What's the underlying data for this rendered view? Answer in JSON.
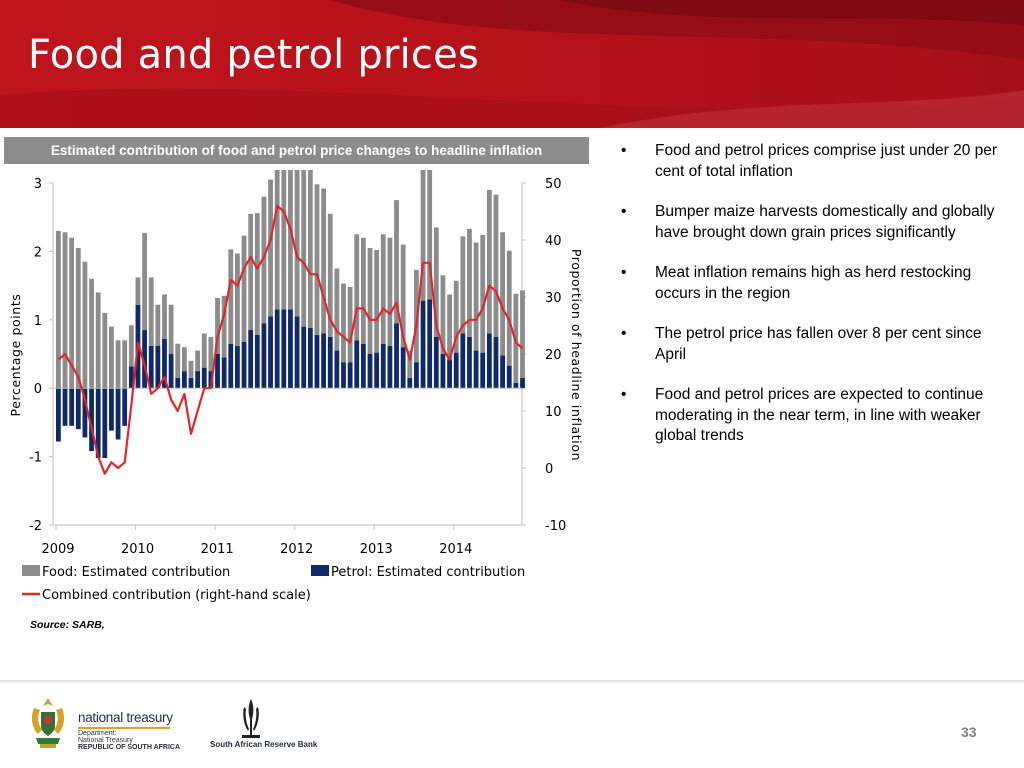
{
  "slide": {
    "title": "Food and petrol prices",
    "chart_title": "Estimated contribution of food and petrol price changes to headline inflation",
    "source_label": "Source",
    "source_text": ": SARB,",
    "page_number": "33",
    "colors": {
      "banner": "#b5121b",
      "banner_dark": "#8e0c14",
      "food": "#8c8c8c",
      "petrol": "#0f2a6b",
      "line": "#e3242b"
    }
  },
  "bullets": [
    "Food and petrol prices comprise just under 20 per cent of total inflation",
    "Bumper maize harvests domestically and globally have brought down grain prices significantly",
    "Meat inflation remains high as herd restocking occurs in the region",
    "The petrol price has fallen over 8 per cent since April",
    "Food and petrol prices are expected to continue moderating in the near term, in line with weaker global trends"
  ],
  "footer": {
    "treasury_name": "national treasury",
    "treasury_sub1": "Department:",
    "treasury_sub2": "National Treasury",
    "treasury_sub3": "REPUBLIC OF SOUTH AFRICA",
    "sarb_name": "South African Reserve Bank",
    "icons": [
      "coat-of-arms-icon",
      "sarb-emblem-icon"
    ]
  },
  "chart_data": {
    "type": "bar",
    "stacked": true,
    "ylabel": "Percentage points",
    "y2label": "Proportion of headline inflation",
    "ylim": [
      -2,
      3
    ],
    "y2lim": [
      -10,
      50
    ],
    "yticks": [
      "3",
      "2",
      "1",
      "0",
      "-1",
      "-2"
    ],
    "y2ticks": [
      "50",
      "40",
      "30",
      "20",
      "10",
      "0",
      "-10"
    ],
    "year_labels": [
      "2009",
      "2010",
      "2011",
      "2012",
      "2013",
      "2014"
    ],
    "legend": [
      "Food: Estimated contribution",
      "Petrol: Estimated contribution",
      "Combined contribution (right-hand scale)"
    ],
    "legend_placement": "bottom",
    "grid": false,
    "period": "monthly, Jan 2009 - Sep 2014",
    "series": [
      {
        "name": "Food: Estimated contribution",
        "values": [
          2.3,
          2.28,
          2.2,
          2.05,
          1.85,
          1.6,
          1.4,
          1.1,
          0.9,
          0.7,
          0.7,
          0.6,
          0.4,
          1.42,
          1.0,
          0.6,
          0.65,
          0.72,
          0.5,
          0.35,
          0.25,
          0.3,
          0.5,
          0.5,
          0.82,
          0.9,
          1.38,
          1.35,
          1.55,
          1.7,
          1.78,
          1.85,
          2.0,
          2.28,
          2.72,
          2.75,
          2.7,
          2.4,
          2.35,
          2.2,
          2.12,
          1.8,
          1.2,
          1.15,
          1.1,
          1.55,
          1.55,
          1.55,
          1.5,
          1.6,
          1.58,
          1.8,
          1.5,
          0.4,
          1.35,
          2.28,
          2.35,
          1.6,
          1.15,
          0.95,
          1.05,
          1.42,
          1.58,
          1.58,
          1.72,
          2.1,
          2.08,
          1.8,
          1.68,
          1.3,
          1.28
        ]
      },
      {
        "name": "Petrol: Estimated contribution",
        "values": [
          -0.78,
          -0.55,
          -0.55,
          -0.6,
          -0.72,
          -0.92,
          -1.02,
          -1.02,
          -0.62,
          -0.75,
          -0.55,
          0.32,
          1.22,
          0.85,
          0.62,
          0.62,
          0.72,
          0.5,
          0.15,
          0.25,
          0.15,
          0.25,
          0.3,
          0.25,
          0.5,
          0.45,
          0.65,
          0.62,
          0.68,
          0.85,
          0.78,
          0.95,
          1.05,
          1.15,
          1.15,
          1.15,
          1.05,
          0.9,
          0.88,
          0.78,
          0.8,
          0.75,
          0.55,
          0.38,
          0.38,
          0.7,
          0.65,
          0.5,
          0.52,
          0.65,
          0.62,
          0.95,
          0.6,
          0.15,
          0.38,
          1.28,
          1.3,
          0.75,
          0.5,
          0.42,
          0.52,
          0.8,
          0.75,
          0.55,
          0.52,
          0.8,
          0.75,
          0.48,
          0.33,
          0.08,
          0.15
        ]
      },
      {
        "name": "Combined contribution (right-hand scale)",
        "axis": "right",
        "values": [
          19,
          20,
          18,
          16,
          12,
          7,
          2,
          -1,
          1,
          0,
          1,
          11,
          22,
          18,
          13,
          14,
          16,
          12,
          10,
          13,
          6,
          10,
          14,
          14,
          23,
          27,
          33,
          32,
          35,
          37,
          35,
          37,
          40,
          46,
          45,
          42,
          37,
          36,
          34,
          34,
          30,
          26,
          24,
          23,
          22,
          28,
          28,
          26,
          26,
          28,
          27,
          29,
          23,
          19,
          25,
          36,
          36,
          25,
          21,
          19,
          23,
          25,
          26,
          26,
          28,
          32,
          31,
          28,
          26,
          22,
          21
        ]
      }
    ]
  }
}
